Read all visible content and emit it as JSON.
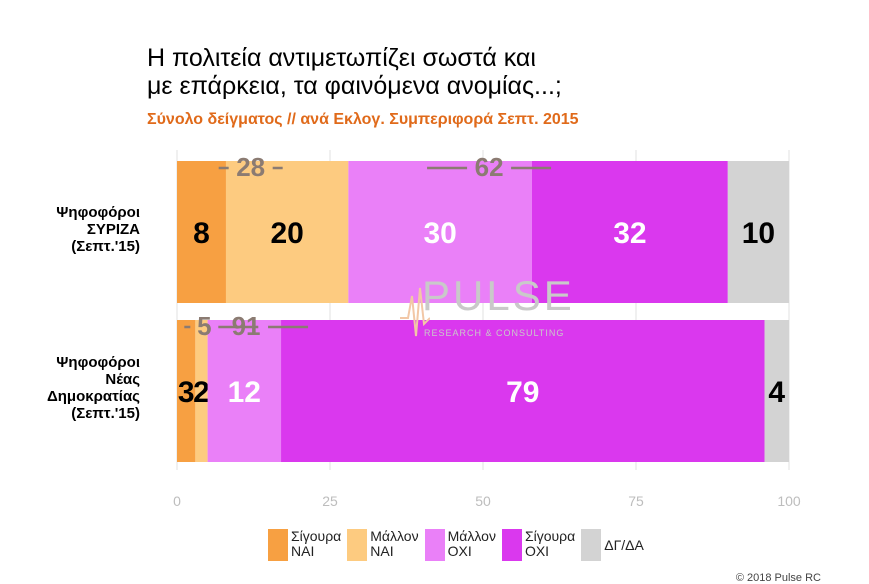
{
  "chart_data": {
    "type": "bar",
    "title": "Η πολιτεία αντιμετωπίζει σωστά και με επάρκεια, τα φαινόμενα ανομίας...;",
    "title_lines": [
      "Η πολιτεία αντιμετωπίζει σωστά και",
      "με επάρκεια, τα φαινόμενα ανομίας...;"
    ],
    "subtitle": "Σύνολο δείγματος // ανά Εκλογ. Συμπεριφορά Σεπτ. 2015",
    "stacked": true,
    "orientation": "horizontal",
    "xlim": [
      0,
      100
    ],
    "xticks": [
      "0",
      "25",
      "50",
      "75",
      "100"
    ],
    "grid": true,
    "legend_position": "bottom",
    "categories": [
      [
        "Ψηφοφόροι",
        "ΣΥΡΙΖΑ",
        "(Σεπτ.'15)"
      ],
      [
        "Ψηφοφόροι",
        "Νέας",
        "Δημοκρατίας",
        "(Σεπτ.'15)"
      ]
    ],
    "series": [
      {
        "name": "Σίγουρα ΝΑΙ",
        "legend_lines": [
          "Σίγουρα",
          "ΝΑΙ"
        ],
        "color": "#F7A042",
        "values": [
          8,
          3
        ],
        "labels": [
          "8",
          "3"
        ],
        "label_color": "#000000"
      },
      {
        "name": "Μάλλον ΝΑΙ",
        "legend_lines": [
          "Μάλλον",
          "ΝΑΙ"
        ],
        "color": "#FDCB80",
        "values": [
          20,
          2
        ],
        "labels": [
          "20",
          "2"
        ],
        "label_color": "#000000"
      },
      {
        "name": "Μάλλον ΟΧΙ",
        "legend_lines": [
          "Μάλλον",
          "ΟΧΙ"
        ],
        "color": "#EA80F8",
        "values": [
          30,
          12
        ],
        "labels": [
          "30",
          "12"
        ],
        "label_color": "#ffffff"
      },
      {
        "name": "Σίγουρα ΟΧΙ",
        "legend_lines": [
          "Σίγουρα",
          "ΟΧΙ"
        ],
        "color": "#DA38EE",
        "values": [
          32,
          79
        ],
        "labels": [
          "32",
          "79"
        ],
        "label_color": "#ffffff"
      },
      {
        "name": "ΔΓ/ΔΑ",
        "legend_lines": [
          "ΔΓ/ΔΑ"
        ],
        "color": "#D3D3D3",
        "values": [
          10,
          4
        ],
        "labels": [
          "10",
          "4"
        ],
        "label_color": "#000000"
      }
    ],
    "group_totals": [
      {
        "positive": "28",
        "negative": "62"
      },
      {
        "positive": "5",
        "negative": "91"
      }
    ],
    "total_label_color": "#8B7B72"
  },
  "watermark": {
    "main": "PULSE",
    "sub": "RESEARCH & CONSULTING"
  },
  "copyright": "© 2018 Pulse RC"
}
